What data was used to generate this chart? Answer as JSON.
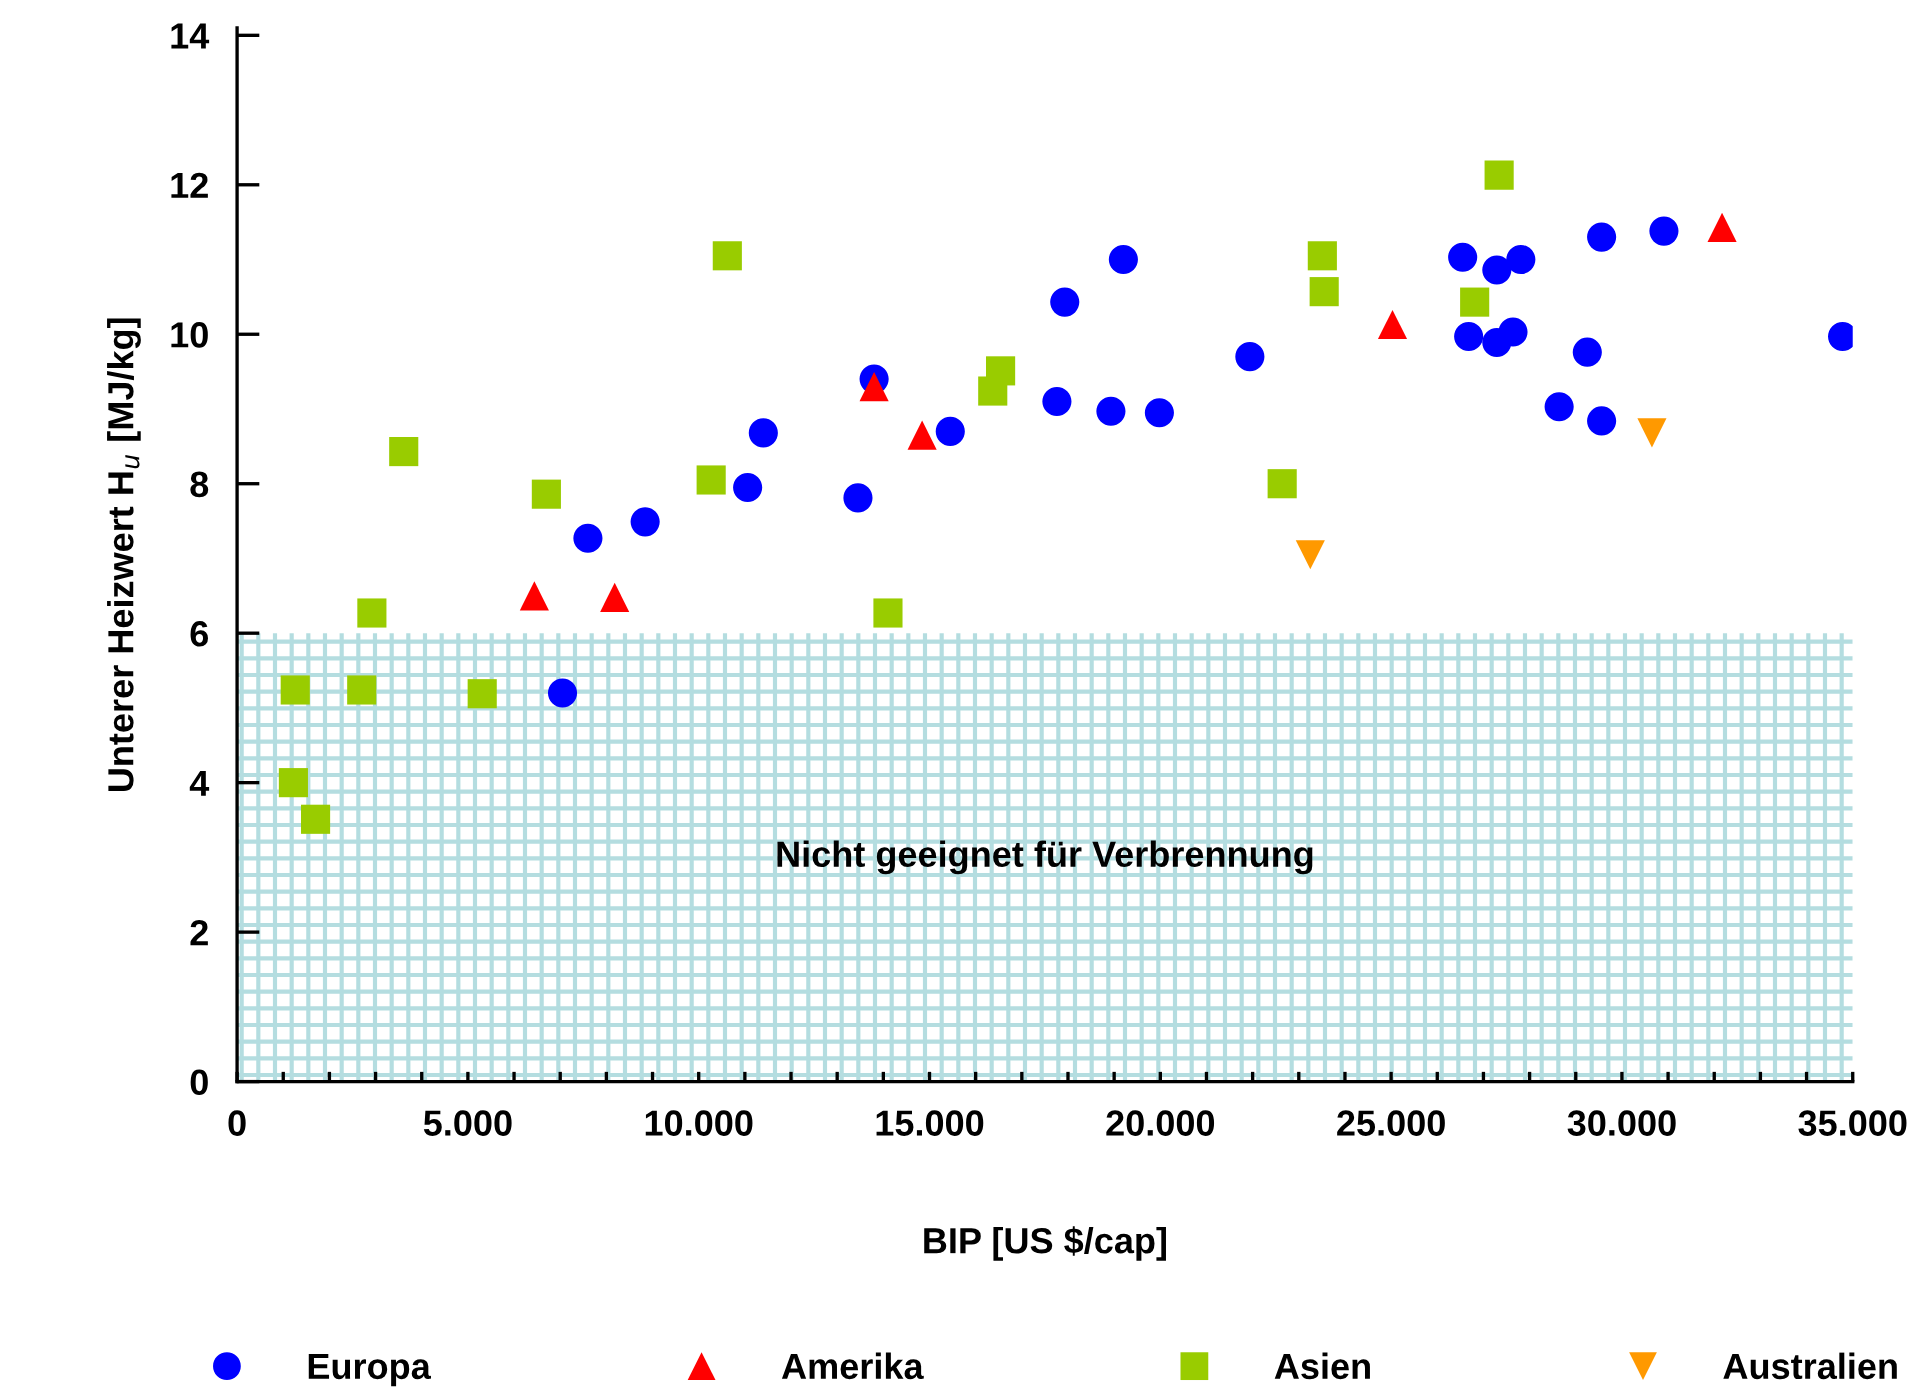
{
  "chart_data": {
    "type": "scatter",
    "xlabel": "BIP [US $/cap]",
    "ylabel": "Unterer Heizwert H$_{u}$ [MJ/kg]",
    "xlim": [
      0,
      35000
    ],
    "ylim": [
      0,
      14.1
    ],
    "xticks": [
      0,
      {
        "value": 1000,
        "label": null
      },
      {
        "value": 2000,
        "label": null
      },
      {
        "value": 3000,
        "label": null
      },
      {
        "value": 4000,
        "label": null
      },
      {
        "value": 5000,
        "label": "5.000"
      },
      {
        "value": 6000,
        "label": null
      },
      {
        "value": 7000,
        "label": null
      },
      {
        "value": 8000,
        "label": null
      },
      {
        "value": 9000,
        "label": null
      },
      {
        "value": 10000,
        "label": "10.000"
      },
      {
        "value": 11000,
        "label": null
      },
      {
        "value": 12000,
        "label": null
      },
      {
        "value": 13000,
        "label": null
      },
      {
        "value": 14000,
        "label": null
      },
      {
        "value": 15000,
        "label": "15.000"
      },
      {
        "value": 16000,
        "label": null
      },
      {
        "value": 17000,
        "label": null
      },
      {
        "value": 18000,
        "label": null
      },
      {
        "value": 19000,
        "label": null
      },
      {
        "value": 20000,
        "label": "20.000"
      },
      {
        "value": 21000,
        "label": null
      },
      {
        "value": 22000,
        "label": null
      },
      {
        "value": 23000,
        "label": null
      },
      {
        "value": 24000,
        "label": null
      },
      {
        "value": 25000,
        "label": "25.000"
      },
      {
        "value": 26000,
        "label": null
      },
      {
        "value": 27000,
        "label": null
      },
      {
        "value": 28000,
        "label": null
      },
      {
        "value": 29000,
        "label": null
      },
      {
        "value": 30000,
        "label": "30.000"
      },
      {
        "value": 31000,
        "label": null
      },
      {
        "value": 32000,
        "label": null
      },
      {
        "value": 33000,
        "label": null
      },
      {
        "value": 34000,
        "label": null
      },
      {
        "value": 35000,
        "label": "35.000"
      }
    ],
    "yticks": [
      0,
      2,
      4,
      6,
      8,
      10,
      12,
      14
    ],
    "grid": false,
    "legend": "bottom",
    "bands": [
      {
        "axis": "y",
        "from": 0,
        "to": 6,
        "label": "Nicht geeignet für Verbrennung",
        "color": "#b4dde0"
      }
    ],
    "series": [
      {
        "name": "Europa",
        "color": "#0000ff",
        "marker": "circle",
        "x": [
          7050,
          7600,
          8840,
          11060,
          11400,
          13450,
          13800,
          15450,
          17760,
          17930,
          18930,
          19200,
          19980,
          21940,
          26550,
          26680,
          27290,
          27290,
          27640,
          27810,
          28640,
          29250,
          29560,
          29560,
          30910,
          34780
        ],
        "values": [
          5.2,
          7.27,
          7.49,
          7.95,
          8.68,
          7.81,
          9.4,
          8.7,
          9.1,
          10.43,
          8.97,
          11.0,
          8.95,
          9.7,
          11.03,
          9.97,
          10.86,
          9.89,
          10.03,
          11.0,
          9.03,
          9.76,
          11.3,
          8.84,
          11.38,
          9.97
        ]
      },
      {
        "name": "Amerika",
        "color": "#ff0000",
        "marker": "triangle",
        "x": [
          6440,
          8180,
          13800,
          14840,
          25030,
          32170
        ],
        "values": [
          6.5,
          6.48,
          9.3,
          8.65,
          10.13,
          11.43
        ]
      },
      {
        "name": "Asien",
        "color": "#99cc00",
        "marker": "square",
        "x": [
          1220,
          1260,
          1700,
          2700,
          2920,
          3610,
          5310,
          6700,
          10270,
          10620,
          14100,
          16370,
          16540,
          22640,
          23510,
          23550,
          26810,
          27340
        ],
        "values": [
          4.0,
          5.24,
          3.51,
          5.24,
          6.27,
          8.43,
          5.19,
          7.86,
          8.05,
          11.05,
          6.27,
          9.24,
          9.51,
          8.0,
          11.05,
          10.57,
          10.43,
          12.13
        ]
      },
      {
        "name": "Australien",
        "color": "#ff9900",
        "marker": "triangle_down",
        "x": [
          23250,
          30650
        ],
        "values": [
          7.05,
          8.68
        ]
      }
    ]
  }
}
